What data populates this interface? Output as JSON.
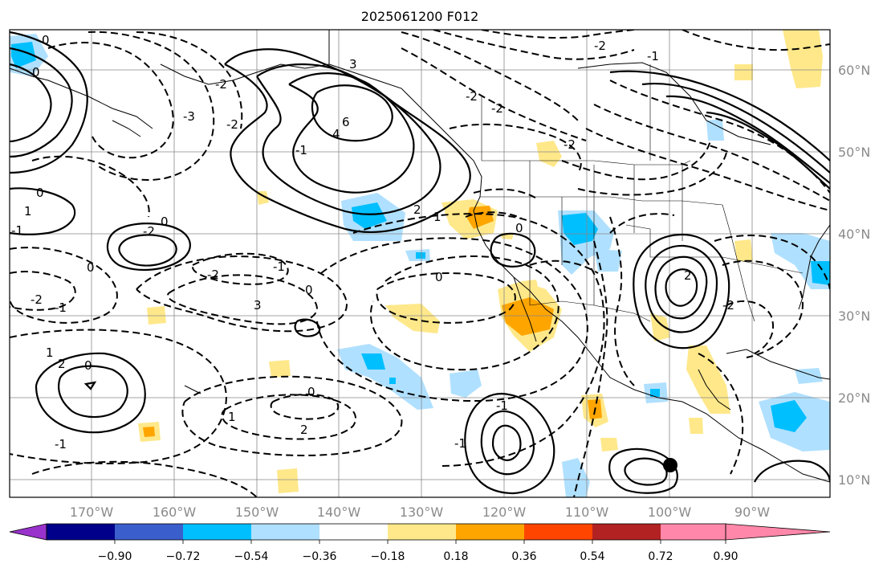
{
  "title": "2025061200 F012",
  "lat_labels": [
    "60°N",
    "50°N",
    "40°N",
    "30°N",
    "20°N",
    "10°N"
  ],
  "lon_labels": [
    "170°W",
    "160°W",
    "150°W",
    "140°W",
    "130°W",
    "120°W",
    "110°W",
    "100°W",
    "90°W"
  ],
  "colorbar": {
    "tick_labels": [
      "−0.90",
      "−0.72",
      "−0.54",
      "−0.36",
      "−0.18",
      "0.18",
      "0.36",
      "0.54",
      "0.72",
      "0.90"
    ],
    "colors": [
      "#9932cc",
      "#00008b",
      "#3a5fcd",
      "#00bfff",
      "#b0e0ff",
      "#ffffff",
      "#ffe88a",
      "#ffa500",
      "#ff4500",
      "#b22222",
      "#ff88aa"
    ]
  },
  "contour_labels": [
    "0",
    "0",
    "-2",
    "3",
    "6",
    "4",
    "-2",
    "-2",
    "-2",
    "-2",
    "-2",
    "1",
    "2",
    "-1",
    "-3",
    "0",
    "1",
    "-1",
    "0",
    "-2",
    "-2",
    "-1",
    "0",
    "-2",
    "-1",
    "0",
    "3",
    "0",
    "0",
    "2",
    "-2",
    "-1",
    "1",
    "2",
    "0",
    "0",
    "1",
    "2",
    "-1",
    "-1",
    "-1"
  ],
  "map": {
    "projection": "mercator",
    "lon_range": [
      -180,
      -80
    ],
    "lat_range": [
      8,
      65
    ],
    "gridlines": true,
    "positive_contours": "solid",
    "negative_contours": "dashed"
  }
}
